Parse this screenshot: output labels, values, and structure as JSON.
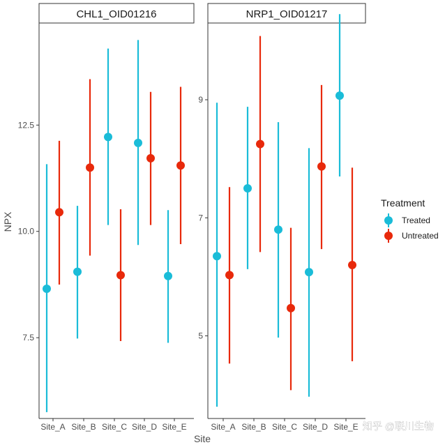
{
  "chart_data": {
    "type": "scatter",
    "subtype": "point-range",
    "xlabel": "Site",
    "ylabel": "NPX",
    "categories": [
      "Site_A",
      "Site_B",
      "Site_C",
      "Site_D",
      "Site_E"
    ],
    "legend": {
      "title": "Treatment",
      "placement": "right",
      "entries": [
        {
          "name": "Treated",
          "color": "#1ABCD8"
        },
        {
          "name": "Untreated",
          "color": "#E8290B"
        }
      ]
    },
    "panels": [
      {
        "title": "CHL1_OID01216",
        "ylim": [
          5.6,
          14.9
        ],
        "yticks": [
          7.5,
          10.0,
          12.5
        ],
        "ytick_labels": [
          "7.5",
          "10.0",
          "12.5"
        ],
        "series": [
          {
            "name": "Treated",
            "mean": [
              8.65,
              9.05,
              12.22,
              12.08,
              8.95
            ],
            "low": [
              5.75,
              7.48,
              10.15,
              9.68,
              7.38
            ],
            "high": [
              11.58,
              10.6,
              14.3,
              14.5,
              10.5
            ]
          },
          {
            "name": "Untreated",
            "mean": [
              10.45,
              11.5,
              8.97,
              11.72,
              11.55
            ],
            "low": [
              8.75,
              9.43,
              7.42,
              10.15,
              9.7
            ],
            "high": [
              12.13,
              13.58,
              10.52,
              13.28,
              13.4
            ]
          }
        ]
      },
      {
        "title": "NRP1_OID01217",
        "ylim": [
          3.6,
          10.3
        ],
        "yticks": [
          5,
          7,
          9
        ],
        "ytick_labels": [
          "5",
          "7",
          "9"
        ],
        "series": [
          {
            "name": "Treated",
            "mean": [
              6.35,
              7.5,
              6.8,
              6.08,
              9.07
            ],
            "low": [
              3.8,
              6.13,
              4.97,
              3.97,
              7.7
            ],
            "high": [
              8.95,
              8.88,
              8.62,
              8.18,
              10.45
            ]
          },
          {
            "name": "Untreated",
            "mean": [
              6.03,
              8.25,
              5.47,
              7.87,
              6.2
            ],
            "low": [
              4.53,
              6.42,
              4.08,
              6.47,
              4.57
            ],
            "high": [
              7.52,
              10.08,
              6.83,
              9.25,
              7.85
            ]
          }
        ]
      }
    ]
  },
  "watermark": {
    "text": "知乎 @联川生物"
  }
}
